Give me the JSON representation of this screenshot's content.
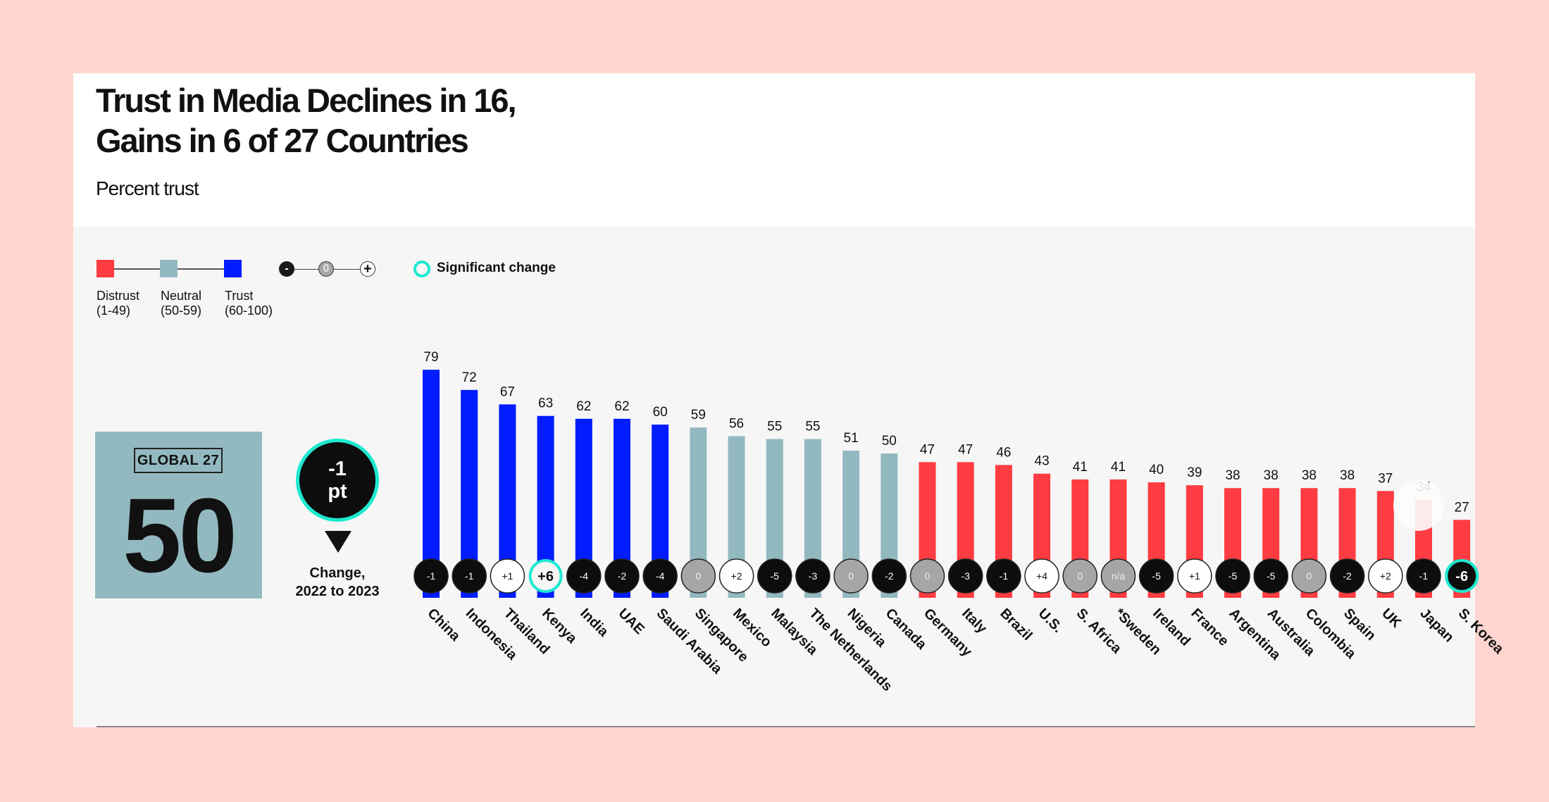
{
  "header": {
    "title_line1": "Trust in Media Declines in 16,",
    "title_line2": "Gains in 6 of 27 Countries",
    "subtitle": "Percent trust"
  },
  "legend": {
    "categories": [
      {
        "label": "Distrust",
        "range": "(1-49)",
        "color": "#ff3c41"
      },
      {
        "label": "Neutral",
        "range": "(50-59)",
        "color": "#93b9c0"
      },
      {
        "label": "Trust",
        "range": "(60-100)",
        "color": "#001cff"
      }
    ],
    "change_scale": {
      "minus": "-",
      "zero": "0",
      "plus": "+"
    },
    "significant_label": "Significant change",
    "significant_color": "#1de9d0"
  },
  "global": {
    "tag": "GLOBAL  27",
    "value": "50",
    "change_value": "-1",
    "change_unit": "pt",
    "change_label_line1": "Change,",
    "change_label_line2": "2022 to 2023"
  },
  "chart_data": {
    "type": "bar",
    "title": "Trust in Media Declines in 16, Gains in 6 of 27 Countries",
    "subtitle": "Percent trust",
    "xlabel": "",
    "ylabel": "Percent trust",
    "ylim": [
      0,
      100
    ],
    "grid": false,
    "legend_position": "top-left",
    "categories": [
      "China",
      "Indonesia",
      "Thailand",
      "Kenya",
      "India",
      "UAE",
      "Saudi Arabia",
      "Singapore",
      "Mexico",
      "Malaysia",
      "The Netherlands",
      "Nigeria",
      "Canada",
      "Germany",
      "Italy",
      "Brazil",
      "U.S.",
      "S. Africa",
      "*Sweden",
      "Ireland",
      "France",
      "Argentina",
      "Australia",
      "Colombia",
      "Spain",
      "UK",
      "Japan",
      "S. Korea"
    ],
    "values": [
      79,
      72,
      67,
      63,
      62,
      62,
      60,
      59,
      56,
      55,
      55,
      51,
      50,
      47,
      47,
      46,
      43,
      41,
      41,
      40,
      39,
      38,
      38,
      38,
      38,
      37,
      34,
      27
    ],
    "changes": [
      "-1",
      "-1",
      "+1",
      "+6",
      "-4",
      "-2",
      "-4",
      "0",
      "+2",
      "-5",
      "-3",
      "0",
      "-2",
      "0",
      "-3",
      "-1",
      "+4",
      "0",
      "n/a",
      "-5",
      "+1",
      "-5",
      "-5",
      "0",
      "-2",
      "+2",
      "-1",
      "-6"
    ],
    "significant": [
      false,
      false,
      false,
      true,
      false,
      false,
      false,
      false,
      false,
      false,
      false,
      false,
      false,
      false,
      false,
      false,
      false,
      false,
      false,
      false,
      false,
      false,
      false,
      false,
      false,
      false,
      false,
      true
    ],
    "thresholds": {
      "distrust_max": 49,
      "neutral_max": 59
    },
    "colors": {
      "distrust": "#ff3c41",
      "neutral": "#93b9c0",
      "trust": "#001cff",
      "change_negative": "#0d0d0d",
      "change_zero": "#a6a6a6",
      "change_positive": "#ffffff"
    }
  }
}
